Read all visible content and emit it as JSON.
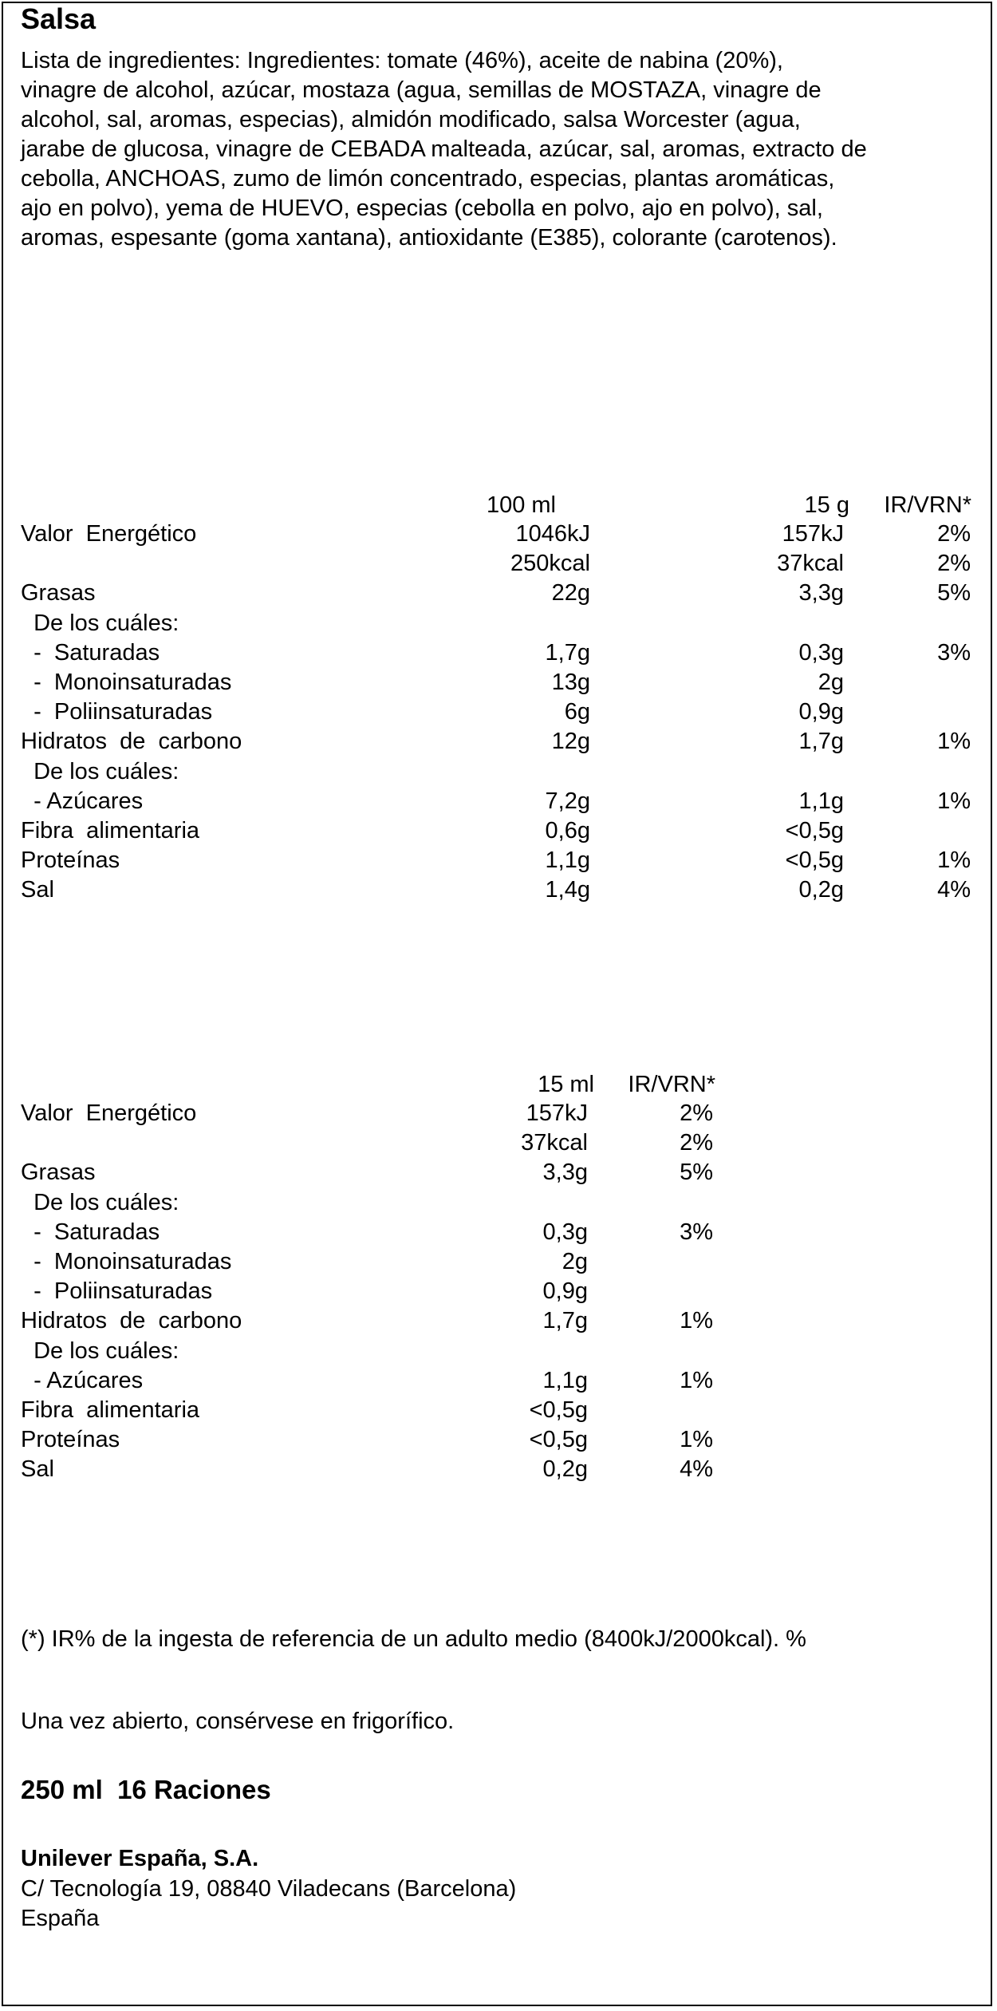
{
  "title": "Salsa",
  "ingredients_lines": [
    "Lista de ingredientes: Ingredientes: tomate (46%), aceite de nabina (20%),",
    "vinagre de alcohol, azúcar, mostaza (agua, semillas de MOSTAZA, vinagre de",
    "alcohol, sal, aromas, especias), almidón modificado, salsa Worcester (agua,",
    "jarabe de glucosa, vinagre de CEBADA malteada, azúcar, sal, aromas, extracto de",
    "cebolla, ANCHOAS, zumo de limón concentrado, especias, plantas aromáticas,",
    "ajo en polvo), yema de HUEVO, especias (cebolla en polvo, ajo en polvo), sal,",
    "aromas, espesante (goma xantana), antioxidante (E385), colorante (carotenos)."
  ],
  "table1": {
    "header": {
      "col1": "100 ml",
      "col2": "15 g",
      "col3": "IR/VRN*"
    },
    "rows": [
      {
        "label": "Valor  Energético",
        "c1": "1046kJ",
        "c2": "157kJ",
        "c3": "2%"
      },
      {
        "label": "",
        "c1": "250kcal",
        "c2": "37kcal",
        "c3": "2%"
      },
      {
        "label": "Grasas",
        "c1": "22g",
        "c2": "3,3g",
        "c3": "5%"
      },
      {
        "label": "  De los cuáles:",
        "c1": "",
        "c2": "",
        "c3": ""
      },
      {
        "label": "  -  Saturadas",
        "c1": "1,7g",
        "c2": "0,3g",
        "c3": "3%"
      },
      {
        "label": "  -  Monoinsaturadas",
        "c1": "13g",
        "c2": "2g",
        "c3": ""
      },
      {
        "label": "  -  Poliinsaturadas",
        "c1": "6g",
        "c2": "0,9g",
        "c3": ""
      },
      {
        "label": "Hidratos  de  carbono",
        "c1": "12g",
        "c2": "1,7g",
        "c3": "1%"
      },
      {
        "label": "  De los cuáles:",
        "c1": "",
        "c2": "",
        "c3": ""
      },
      {
        "label": "  - Azúcares",
        "c1": "7,2g",
        "c2": "1,1g",
        "c3": "1%"
      },
      {
        "label": "Fibra  alimentaria",
        "c1": "0,6g",
        "c2": "<0,5g",
        "c3": ""
      },
      {
        "label": "Proteínas",
        "c1": "1,1g",
        "c2": "<0,5g",
        "c3": "1%"
      },
      {
        "label": "Sal",
        "c1": "1,4g",
        "c2": "0,2g",
        "c3": "4%"
      }
    ]
  },
  "table2": {
    "header": {
      "col1": "15 ml",
      "col2": "IR/VRN*"
    },
    "rows": [
      {
        "label": "Valor  Energético",
        "c1": "157kJ",
        "c2": "2%"
      },
      {
        "label": "",
        "c1": "37kcal",
        "c2": "2%"
      },
      {
        "label": "Grasas",
        "c1": "3,3g",
        "c2": "5%"
      },
      {
        "label": "  De los cuáles:",
        "c1": "",
        "c2": ""
      },
      {
        "label": "  -  Saturadas",
        "c1": "0,3g",
        "c2": "3%"
      },
      {
        "label": "  -  Monoinsaturadas",
        "c1": "2g",
        "c2": ""
      },
      {
        "label": "  -  Poliinsaturadas",
        "c1": "0,9g",
        "c2": ""
      },
      {
        "label": "Hidratos  de  carbono",
        "c1": "1,7g",
        "c2": "1%"
      },
      {
        "label": "  De los cuáles:",
        "c1": "",
        "c2": ""
      },
      {
        "label": "  - Azúcares",
        "c1": "1,1g",
        "c2": "1%"
      },
      {
        "label": "Fibra  alimentaria",
        "c1": "<0,5g",
        "c2": ""
      },
      {
        "label": "Proteínas",
        "c1": "<0,5g",
        "c2": "1%"
      },
      {
        "label": "Sal",
        "c1": "0,2g",
        "c2": "4%"
      }
    ]
  },
  "footnote": "(*) IR% de la ingesta de referencia de un adulto medio (8400kJ/2000kcal). %",
  "storage": "Una vez abierto, consérvese en frigorífico.",
  "portions": "250 ml  16 Raciones",
  "company": {
    "name": "Unilever España, S.A.",
    "address": "C/ Tecnología 19, 08840 Viladecans (Barcelona)",
    "country": "España"
  }
}
